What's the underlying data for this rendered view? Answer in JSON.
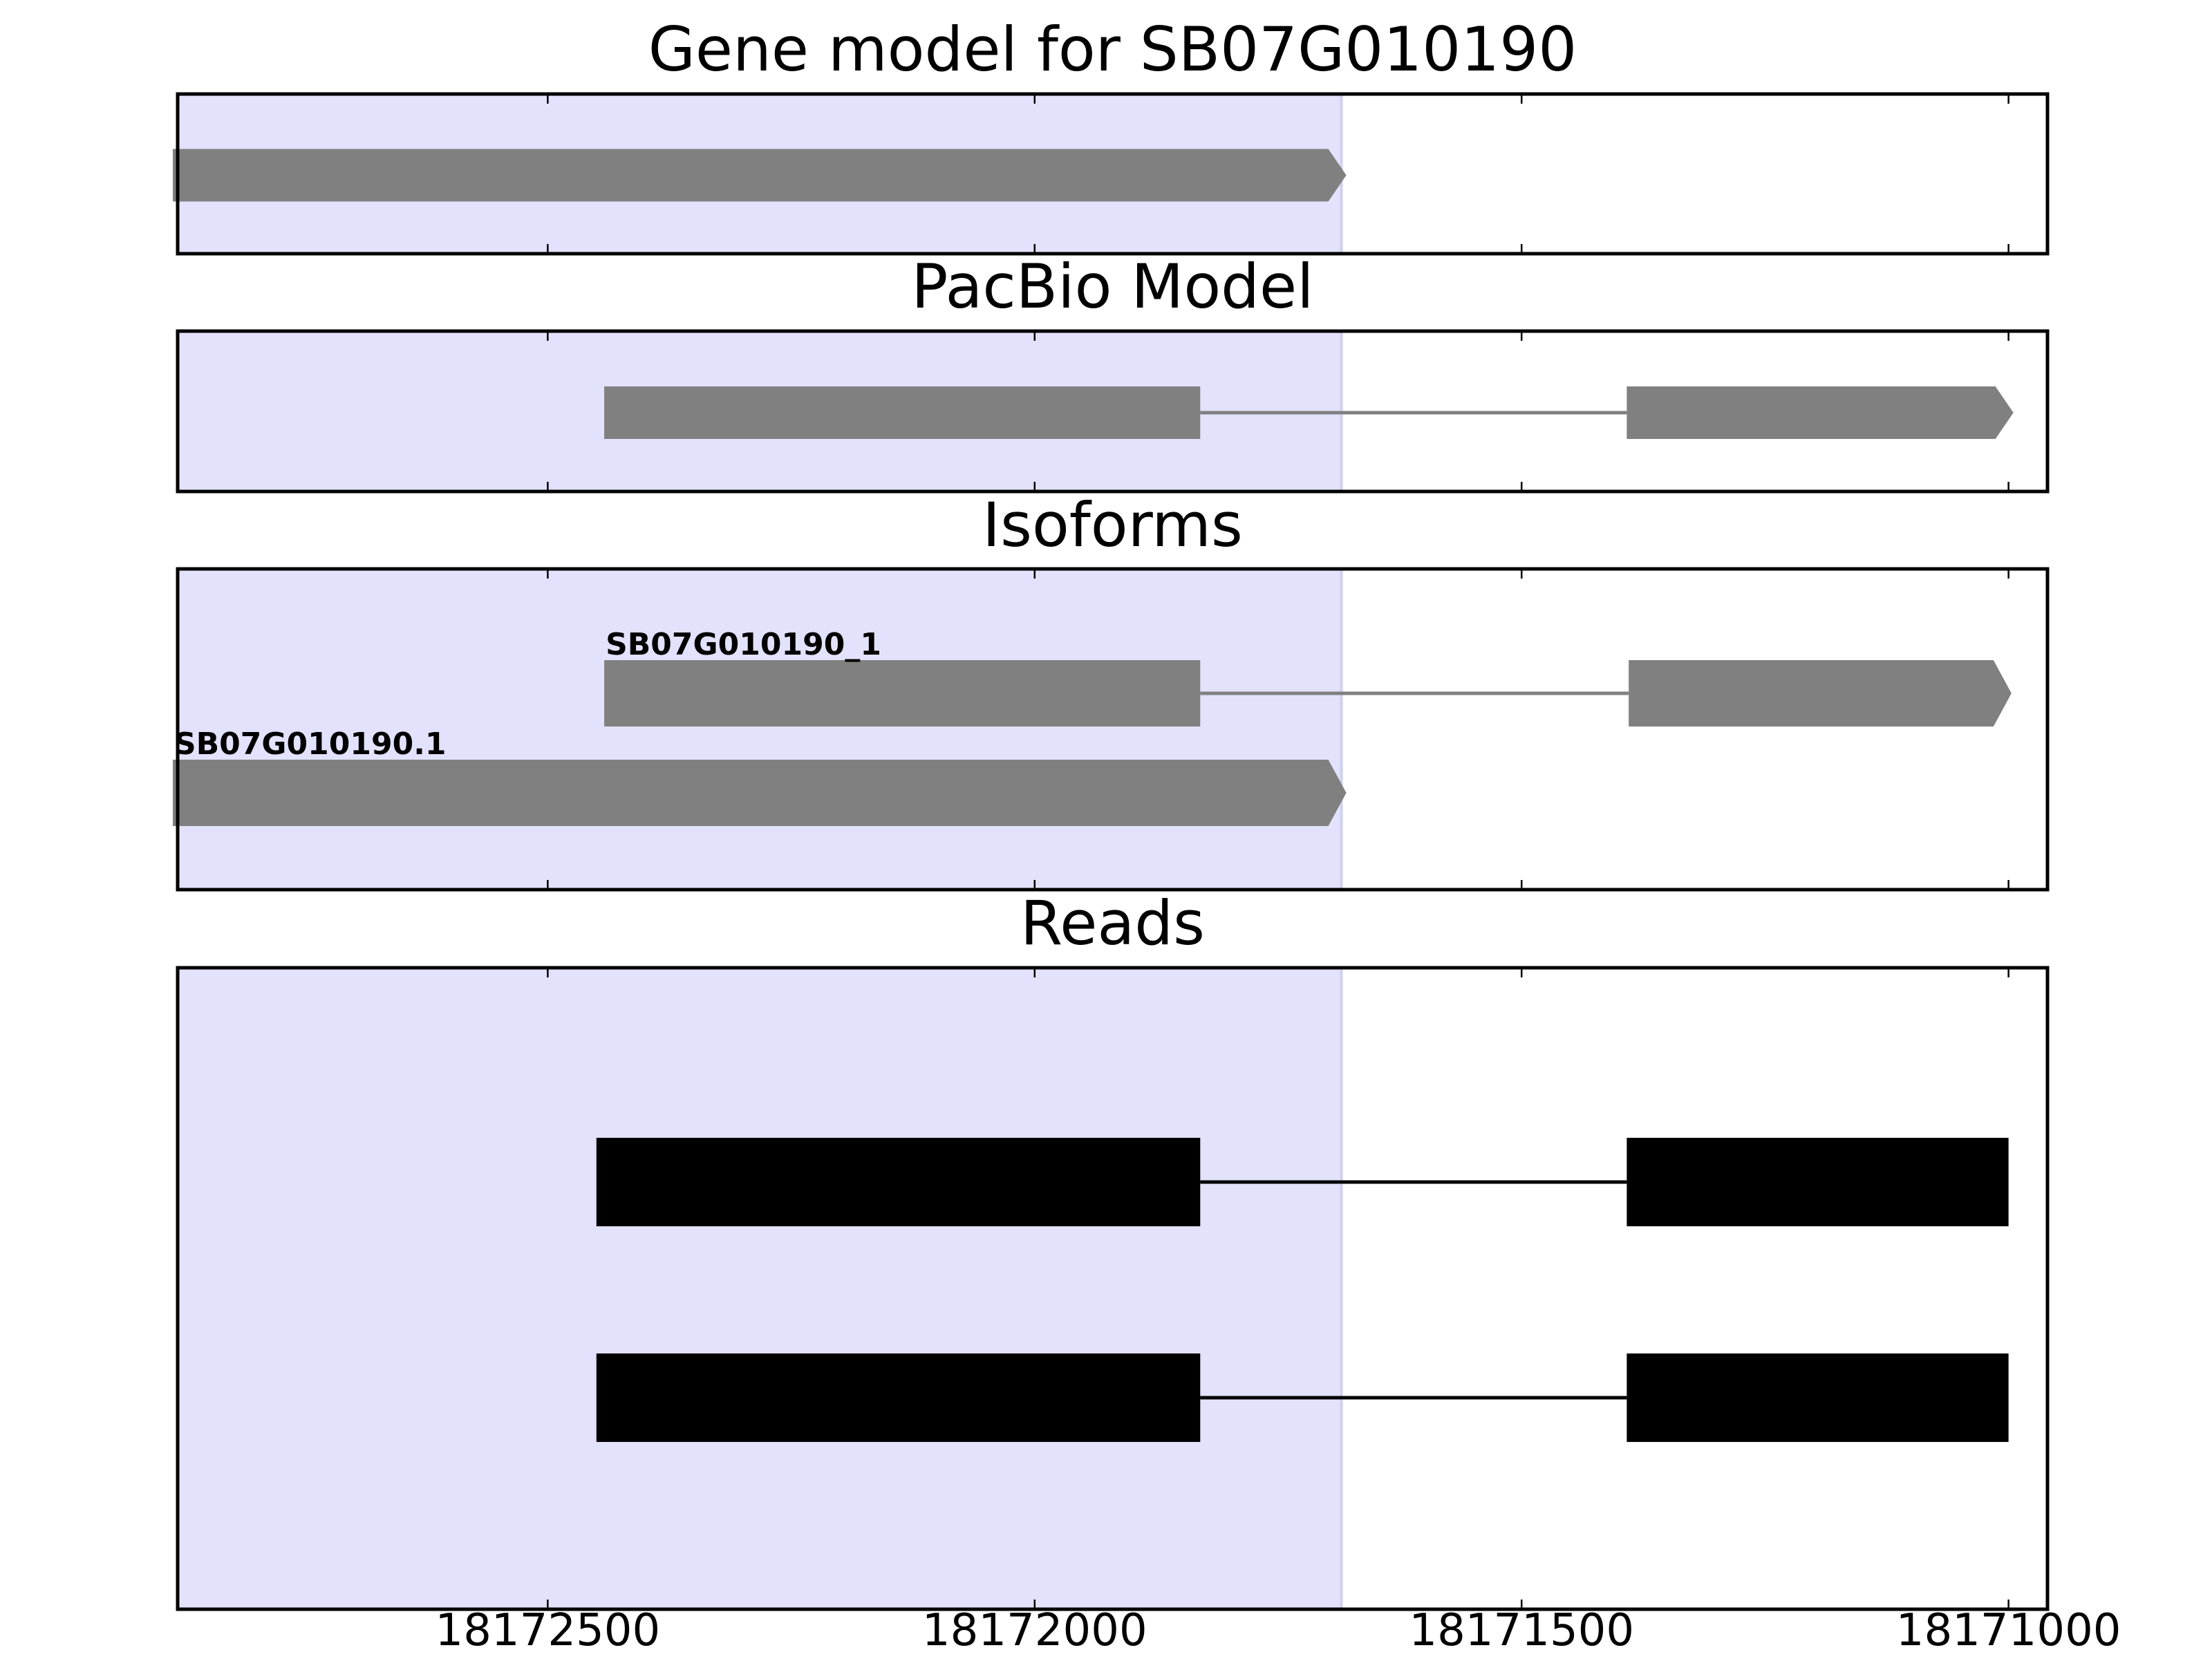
{
  "chart_data": {
    "type": "gene-track",
    "x_axis": {
      "xlim": [
        18172880,
        18170960
      ],
      "direction": "reversed",
      "ticks": [
        18172500,
        18172000,
        18171500,
        18171000
      ],
      "tick_labels": [
        "18172500",
        "18172000",
        "18171500",
        "18171000"
      ]
    },
    "highlight_region": {
      "start": 18172885,
      "end": 18171685,
      "color": "#e2e2fd"
    },
    "colors": {
      "feature": "#808080",
      "read": "#000000",
      "frame": "#000000",
      "highlight": "#e2e2fd"
    },
    "panels": [
      {
        "title": "Gene model for SB07G010190",
        "features": [
          {
            "label": "",
            "strand": "-",
            "exons": [
              [
                18172885,
                18171680
              ]
            ]
          }
        ]
      },
      {
        "title": "PacBio Model",
        "features": [
          {
            "label": "",
            "strand": "-",
            "exons": [
              [
                18172442,
                18171830
              ],
              [
                18171392,
                18170995
              ]
            ]
          }
        ]
      },
      {
        "title": "Isoforms",
        "features": [
          {
            "label": "SB07G010190_1",
            "strand": "-",
            "exons": [
              [
                18172442,
                18171830
              ],
              [
                18171390,
                18170997
              ]
            ]
          },
          {
            "label": "SB07G010190.1",
            "strand": "-",
            "exons": [
              [
                18172885,
                18171680
              ]
            ]
          }
        ]
      },
      {
        "title": "Reads",
        "reads": [
          {
            "exons": [
              [
                18172450,
                18171830
              ],
              [
                18171392,
                18171000
              ]
            ]
          },
          {
            "exons": [
              [
                18172450,
                18171830
              ],
              [
                18171392,
                18171000
              ]
            ]
          }
        ]
      }
    ]
  }
}
